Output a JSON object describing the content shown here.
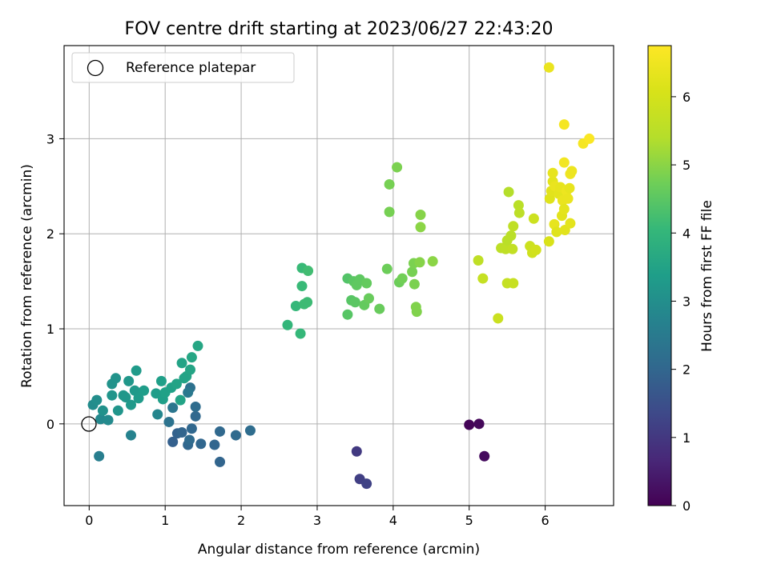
{
  "chart_data": {
    "type": "scatter",
    "title": "FOV centre drift starting at 2023/06/27 22:43:20",
    "xlabel": "Angular distance from reference (arcmin)",
    "ylabel": "Rotation from reference (arcmin)",
    "xlim": [
      -0.33,
      6.9
    ],
    "ylim": [
      -0.86,
      3.98
    ],
    "xticks": [
      0,
      1,
      2,
      3,
      4,
      5,
      6
    ],
    "yticks": [
      0,
      1,
      2,
      3
    ],
    "grid": true,
    "legend": {
      "placement": "top-left",
      "entries": [
        "Reference platepar"
      ]
    },
    "reference_point": {
      "x": 0,
      "y": 0,
      "label": "Reference platepar"
    },
    "colorbar": {
      "label": "Hours from first FF file",
      "colormap": "viridis",
      "range": [
        0,
        6.75
      ],
      "ticks": [
        0,
        1,
        2,
        3,
        4,
        5,
        6
      ]
    },
    "points": [
      {
        "x": 5.0,
        "y": -0.01,
        "hours": 0.05
      },
      {
        "x": 5.13,
        "y": 0.0,
        "hours": 0.12
      },
      {
        "x": 5.2,
        "y": -0.34,
        "hours": 0.18
      },
      {
        "x": 3.52,
        "y": -0.29,
        "hours": 1.05
      },
      {
        "x": 3.56,
        "y": -0.58,
        "hours": 1.15
      },
      {
        "x": 3.65,
        "y": -0.63,
        "hours": 1.2
      },
      {
        "x": 1.1,
        "y": -0.19,
        "hours": 1.85
      },
      {
        "x": 1.16,
        "y": -0.1,
        "hours": 1.9
      },
      {
        "x": 1.22,
        "y": -0.09,
        "hours": 1.95
      },
      {
        "x": 1.3,
        "y": -0.22,
        "hours": 2.0
      },
      {
        "x": 1.35,
        "y": -0.05,
        "hours": 2.02
      },
      {
        "x": 1.4,
        "y": 0.08,
        "hours": 2.05
      },
      {
        "x": 1.47,
        "y": -0.21,
        "hours": 2.0
      },
      {
        "x": 1.65,
        "y": -0.22,
        "hours": 1.98
      },
      {
        "x": 1.72,
        "y": -0.4,
        "hours": 1.95
      },
      {
        "x": 1.72,
        "y": -0.08,
        "hours": 2.05
      },
      {
        "x": 1.93,
        "y": -0.12,
        "hours": 2.1
      },
      {
        "x": 2.12,
        "y": -0.07,
        "hours": 2.15
      },
      {
        "x": 1.32,
        "y": -0.17,
        "hours": 2.1
      },
      {
        "x": 1.4,
        "y": 0.18,
        "hours": 2.15
      },
      {
        "x": 1.33,
        "y": 0.38,
        "hours": 2.25
      },
      {
        "x": 1.05,
        "y": 0.02,
        "hours": 2.3
      },
      {
        "x": 1.1,
        "y": 0.17,
        "hours": 2.4
      },
      {
        "x": 1.3,
        "y": 0.33,
        "hours": 2.45
      },
      {
        "x": 0.13,
        "y": -0.34,
        "hours": 2.6
      },
      {
        "x": 0.55,
        "y": -0.12,
        "hours": 2.7
      },
      {
        "x": 0.9,
        "y": 0.1,
        "hours": 2.8
      },
      {
        "x": 0.15,
        "y": 0.05,
        "hours": 2.85
      },
      {
        "x": 0.25,
        "y": 0.04,
        "hours": 2.9
      },
      {
        "x": 0.05,
        "y": 0.2,
        "hours": 2.95
      },
      {
        "x": 0.1,
        "y": 0.25,
        "hours": 3.0
      },
      {
        "x": 0.18,
        "y": 0.14,
        "hours": 3.05
      },
      {
        "x": 0.3,
        "y": 0.42,
        "hours": 3.1
      },
      {
        "x": 0.35,
        "y": 0.48,
        "hours": 3.1
      },
      {
        "x": 0.3,
        "y": 0.3,
        "hours": 3.15
      },
      {
        "x": 0.38,
        "y": 0.14,
        "hours": 3.15
      },
      {
        "x": 0.45,
        "y": 0.3,
        "hours": 3.2
      },
      {
        "x": 0.52,
        "y": 0.45,
        "hours": 3.2
      },
      {
        "x": 0.55,
        "y": 0.2,
        "hours": 3.25
      },
      {
        "x": 0.6,
        "y": 0.35,
        "hours": 3.25
      },
      {
        "x": 0.62,
        "y": 0.56,
        "hours": 3.3
      },
      {
        "x": 0.65,
        "y": 0.27,
        "hours": 3.3
      },
      {
        "x": 0.72,
        "y": 0.35,
        "hours": 3.35
      },
      {
        "x": 0.88,
        "y": 0.32,
        "hours": 3.35
      },
      {
        "x": 0.95,
        "y": 0.45,
        "hours": 3.4
      },
      {
        "x": 0.97,
        "y": 0.26,
        "hours": 3.4
      },
      {
        "x": 1.0,
        "y": 0.33,
        "hours": 3.45
      },
      {
        "x": 1.08,
        "y": 0.38,
        "hours": 3.45
      },
      {
        "x": 1.15,
        "y": 0.42,
        "hours": 3.5
      },
      {
        "x": 1.22,
        "y": 0.64,
        "hours": 3.5
      },
      {
        "x": 1.2,
        "y": 0.25,
        "hours": 3.5
      },
      {
        "x": 1.28,
        "y": 0.5,
        "hours": 3.55
      },
      {
        "x": 1.33,
        "y": 0.57,
        "hours": 3.55
      },
      {
        "x": 1.35,
        "y": 0.7,
        "hours": 3.6
      },
      {
        "x": 1.43,
        "y": 0.82,
        "hours": 3.6
      },
      {
        "x": 1.25,
        "y": 0.48,
        "hours": 3.5
      },
      {
        "x": 0.48,
        "y": 0.28,
        "hours": 3.2
      },
      {
        "x": 2.61,
        "y": 1.04,
        "hours": 4.0
      },
      {
        "x": 2.72,
        "y": 1.24,
        "hours": 4.05
      },
      {
        "x": 2.78,
        "y": 0.95,
        "hours": 4.05
      },
      {
        "x": 2.8,
        "y": 1.45,
        "hours": 4.1
      },
      {
        "x": 2.8,
        "y": 1.64,
        "hours": 4.1
      },
      {
        "x": 2.83,
        "y": 1.26,
        "hours": 4.15
      },
      {
        "x": 2.87,
        "y": 1.28,
        "hours": 4.15
      },
      {
        "x": 2.88,
        "y": 1.61,
        "hours": 4.2
      },
      {
        "x": 3.4,
        "y": 1.53,
        "hours": 4.4
      },
      {
        "x": 3.4,
        "y": 1.15,
        "hours": 4.45
      },
      {
        "x": 3.45,
        "y": 1.3,
        "hours": 4.45
      },
      {
        "x": 3.48,
        "y": 1.5,
        "hours": 4.5
      },
      {
        "x": 3.5,
        "y": 1.28,
        "hours": 4.5
      },
      {
        "x": 3.52,
        "y": 1.46,
        "hours": 4.55
      },
      {
        "x": 3.56,
        "y": 1.52,
        "hours": 4.55
      },
      {
        "x": 3.62,
        "y": 1.25,
        "hours": 4.6
      },
      {
        "x": 3.65,
        "y": 1.48,
        "hours": 4.6
      },
      {
        "x": 3.68,
        "y": 1.32,
        "hours": 4.65
      },
      {
        "x": 3.82,
        "y": 1.21,
        "hours": 4.65
      },
      {
        "x": 3.92,
        "y": 1.63,
        "hours": 4.7
      },
      {
        "x": 3.95,
        "y": 2.52,
        "hours": 4.8
      },
      {
        "x": 3.95,
        "y": 2.23,
        "hours": 4.8
      },
      {
        "x": 4.05,
        "y": 2.7,
        "hours": 4.85
      },
      {
        "x": 4.08,
        "y": 1.49,
        "hours": 4.7
      },
      {
        "x": 4.12,
        "y": 1.53,
        "hours": 4.75
      },
      {
        "x": 4.25,
        "y": 1.6,
        "hours": 4.8
      },
      {
        "x": 4.27,
        "y": 1.69,
        "hours": 4.85
      },
      {
        "x": 4.28,
        "y": 1.47,
        "hours": 4.85
      },
      {
        "x": 4.3,
        "y": 1.23,
        "hours": 4.9
      },
      {
        "x": 4.31,
        "y": 1.18,
        "hours": 4.9
      },
      {
        "x": 4.35,
        "y": 1.7,
        "hours": 4.95
      },
      {
        "x": 4.36,
        "y": 2.2,
        "hours": 4.95
      },
      {
        "x": 4.36,
        "y": 2.07,
        "hours": 5.0
      },
      {
        "x": 4.52,
        "y": 1.71,
        "hours": 5.0
      },
      {
        "x": 5.12,
        "y": 1.72,
        "hours": 5.6
      },
      {
        "x": 5.18,
        "y": 1.53,
        "hours": 5.7
      },
      {
        "x": 5.38,
        "y": 1.11,
        "hours": 5.8
      },
      {
        "x": 5.42,
        "y": 1.85,
        "hours": 5.55
      },
      {
        "x": 5.48,
        "y": 1.84,
        "hours": 5.6
      },
      {
        "x": 5.5,
        "y": 1.93,
        "hours": 5.5
      },
      {
        "x": 5.5,
        "y": 1.48,
        "hours": 5.7
      },
      {
        "x": 5.52,
        "y": 2.44,
        "hours": 5.4
      },
      {
        "x": 5.55,
        "y": 1.98,
        "hours": 5.5
      },
      {
        "x": 5.57,
        "y": 1.84,
        "hours": 5.65
      },
      {
        "x": 5.58,
        "y": 2.08,
        "hours": 5.6
      },
      {
        "x": 5.58,
        "y": 1.48,
        "hours": 5.75
      },
      {
        "x": 5.65,
        "y": 2.3,
        "hours": 5.5
      },
      {
        "x": 5.66,
        "y": 2.22,
        "hours": 5.55
      },
      {
        "x": 5.8,
        "y": 1.87,
        "hours": 5.85
      },
      {
        "x": 5.83,
        "y": 1.8,
        "hours": 5.9
      },
      {
        "x": 5.85,
        "y": 2.16,
        "hours": 5.85
      },
      {
        "x": 5.88,
        "y": 1.83,
        "hours": 5.95
      },
      {
        "x": 6.05,
        "y": 3.75,
        "hours": 6.4
      },
      {
        "x": 6.05,
        "y": 1.92,
        "hours": 6.1
      },
      {
        "x": 6.06,
        "y": 2.37,
        "hours": 6.2
      },
      {
        "x": 6.08,
        "y": 2.45,
        "hours": 6.25
      },
      {
        "x": 6.1,
        "y": 2.55,
        "hours": 6.3
      },
      {
        "x": 6.1,
        "y": 2.64,
        "hours": 6.35
      },
      {
        "x": 6.12,
        "y": 2.1,
        "hours": 6.35
      },
      {
        "x": 6.13,
        "y": 2.5,
        "hours": 6.4
      },
      {
        "x": 6.15,
        "y": 2.02,
        "hours": 6.2
      },
      {
        "x": 6.18,
        "y": 2.42,
        "hours": 6.3
      },
      {
        "x": 6.2,
        "y": 2.49,
        "hours": 6.35
      },
      {
        "x": 6.22,
        "y": 2.19,
        "hours": 6.25
      },
      {
        "x": 6.23,
        "y": 2.35,
        "hours": 6.4
      },
      {
        "x": 6.25,
        "y": 2.75,
        "hours": 6.55
      },
      {
        "x": 6.25,
        "y": 3.15,
        "hours": 6.6
      },
      {
        "x": 6.25,
        "y": 2.26,
        "hours": 6.3
      },
      {
        "x": 6.26,
        "y": 2.04,
        "hours": 6.25
      },
      {
        "x": 6.28,
        "y": 2.45,
        "hours": 6.45
      },
      {
        "x": 6.3,
        "y": 2.37,
        "hours": 6.4
      },
      {
        "x": 6.32,
        "y": 2.48,
        "hours": 6.35
      },
      {
        "x": 6.33,
        "y": 2.11,
        "hours": 6.3
      },
      {
        "x": 6.33,
        "y": 2.63,
        "hours": 6.5
      },
      {
        "x": 6.35,
        "y": 2.66,
        "hours": 6.45
      },
      {
        "x": 6.5,
        "y": 2.95,
        "hours": 6.6
      },
      {
        "x": 6.58,
        "y": 3.0,
        "hours": 6.7
      }
    ]
  }
}
